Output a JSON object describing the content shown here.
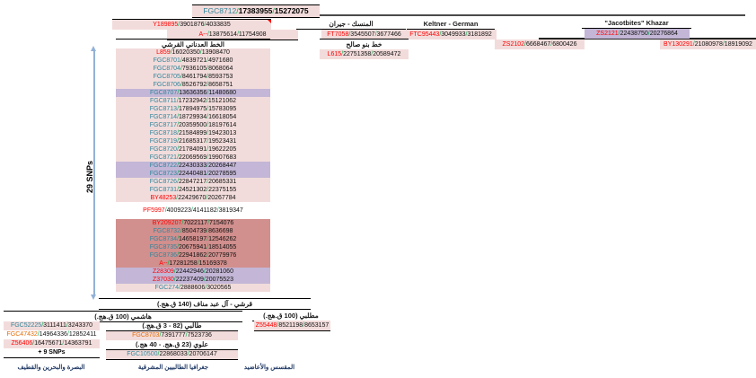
{
  "colors": {
    "pink_bg": "#f2dcdb",
    "purple_bg": "#c3b6d6",
    "red_block_bg": "#d18f8d",
    "snp_name_teal": "#31859c",
    "snp_name_red": "#ff0000",
    "snp_name_orange": "#e36c09",
    "slash_green": "#00b050",
    "arrow_blue": "#93b1d7",
    "caption_navy": "#1f3864"
  },
  "root": {
    "name": "FGC8712",
    "nc": "teal",
    "numbers": [
      "17383955",
      "15272075"
    ]
  },
  "top_left": {
    "y_row": {
      "name": "Y189895",
      "nc": "red",
      "numbers": [
        "3901876",
        "4033835"
      ]
    },
    "a_row": {
      "name": "A--",
      "nc": "red",
      "numbers": [
        "13875614",
        "11754908"
      ]
    }
  },
  "branch_mansak": {
    "header": "المنسك - جيران",
    "snp": {
      "name": "FT7058",
      "nc": "red",
      "numbers": [
        "3545507",
        "3677466"
      ]
    }
  },
  "branch_keltner": {
    "header": "Keltner - German",
    "snp": {
      "name": "FTC95443",
      "nc": "red",
      "numbers": [
        "3049933",
        "3181892"
      ]
    }
  },
  "branch_zs2102": {
    "name": "ZS2102",
    "nc": "red",
    "numbers": [
      "6668467",
      "6800426"
    ]
  },
  "branch_jacotbites": {
    "header": "\"Jacotbites\" Khazar",
    "snp": {
      "name": "ZS2121",
      "nc": "red",
      "numbers": [
        "22438750",
        "20276864"
      ]
    }
  },
  "branch_by130291": {
    "name": "BY130291",
    "nc": "red",
    "numbers": [
      "21080978",
      "18919092"
    ]
  },
  "salih": {
    "header": "خط بنو صالح",
    "snp": {
      "name": "L615",
      "nc": "red",
      "numbers": [
        "22751358",
        "20589472"
      ]
    }
  },
  "adnani": {
    "header": "الخط العدناني القرشي",
    "snp_count_label": "29 SNPs",
    "rows": [
      {
        "name": "L859",
        "nc": "red",
        "bg": "pink",
        "numbers": [
          "16020350",
          "13908470"
        ]
      },
      {
        "name": "FGC8701",
        "nc": "teal",
        "bg": "pink",
        "numbers": [
          "4839721",
          "4971680"
        ]
      },
      {
        "name": "FGC8704",
        "nc": "teal",
        "bg": "pink",
        "numbers": [
          "7936105",
          "8068064"
        ]
      },
      {
        "name": "FGC8705",
        "nc": "teal",
        "bg": "pink",
        "numbers": [
          "8461794",
          "8593753"
        ]
      },
      {
        "name": "FGC8706",
        "nc": "teal",
        "bg": "pink",
        "numbers": [
          "8526792",
          "8658751"
        ]
      },
      {
        "name": "FGC8707",
        "nc": "teal",
        "bg": "purple",
        "numbers": [
          "13636356",
          "11480680"
        ]
      },
      {
        "name": "FGC8711",
        "nc": "teal",
        "bg": "pink",
        "numbers": [
          "17232942",
          "15121062"
        ]
      },
      {
        "name": "FGC8713",
        "nc": "teal",
        "bg": "pink",
        "numbers": [
          "17894975",
          "15783095"
        ]
      },
      {
        "name": "FGC8714",
        "nc": "teal",
        "bg": "pink",
        "numbers": [
          "18729934",
          "16618054"
        ]
      },
      {
        "name": "FGC8717",
        "nc": "teal",
        "bg": "pink",
        "numbers": [
          "20359500",
          "18197614"
        ]
      },
      {
        "name": "FGC8718",
        "nc": "teal",
        "bg": "pink",
        "numbers": [
          "21584899",
          "19423013"
        ]
      },
      {
        "name": "FGC8719",
        "nc": "teal",
        "bg": "pink",
        "numbers": [
          "21685317",
          "19523431"
        ]
      },
      {
        "name": "FGC8720",
        "nc": "teal",
        "bg": "pink",
        "numbers": [
          "21784091",
          "19622205"
        ]
      },
      {
        "name": "FGC8721",
        "nc": "teal",
        "bg": "pink",
        "numbers": [
          "22069569",
          "19907683"
        ]
      },
      {
        "name": "FGC8722",
        "nc": "teal",
        "bg": "purple",
        "numbers": [
          "22430333",
          "20268447"
        ]
      },
      {
        "name": "FGC8723",
        "nc": "teal",
        "bg": "purple",
        "numbers": [
          "22440481",
          "20278595"
        ]
      },
      {
        "name": "FGC8726",
        "nc": "teal",
        "bg": "pink",
        "numbers": [
          "22847217",
          "20685331"
        ]
      },
      {
        "name": "FGC8731",
        "nc": "teal",
        "bg": "pink",
        "numbers": [
          "24521302",
          "22375155"
        ]
      },
      {
        "name": "BY48253",
        "nc": "red",
        "bg": "pink",
        "numbers": [
          "22429670",
          "20267784"
        ]
      },
      {
        "name": "PF5997",
        "nc": "red",
        "bg": "none",
        "numbers": [
          "4009223",
          "4141182",
          "3819347"
        ],
        "wide": true,
        "gap": true
      },
      {
        "name": "BY209207",
        "nc": "red",
        "bg": "redblock",
        "numbers": [
          "7022117",
          "7154076"
        ],
        "gap": true
      },
      {
        "name": "FGC8732",
        "nc": "teal",
        "bg": "redblock",
        "numbers": [
          "8504739",
          "8636698"
        ]
      },
      {
        "name": "FGC8734",
        "nc": "teal",
        "bg": "redblock",
        "numbers": [
          "14658197",
          "12546262"
        ]
      },
      {
        "name": "FGC8735",
        "nc": "teal",
        "bg": "redblock",
        "numbers": [
          "20675941",
          "18514055"
        ]
      },
      {
        "name": "FGC8736",
        "nc": "teal",
        "bg": "redblock",
        "numbers": [
          "22941862",
          "20779976"
        ]
      },
      {
        "name": "A--",
        "nc": "red",
        "bg": "redblock",
        "numbers": [
          "17281258",
          "15169378"
        ]
      },
      {
        "name": "Z28309",
        "nc": "red",
        "bg": "purple",
        "numbers": [
          "22442946",
          "20281060"
        ]
      },
      {
        "name": "Z37030",
        "nc": "red",
        "bg": "purple",
        "numbers": [
          "22237409",
          "20075523"
        ]
      },
      {
        "name": "FGC274",
        "nc": "teal",
        "bg": "pink",
        "numbers": [
          "2888606",
          "3020565"
        ]
      }
    ]
  },
  "bars": {
    "qurashi": "قرشي - آل عبد مناف (140 ق.هج.)",
    "hashimi": "هاشمي (100 ق.هج.)"
  },
  "muttalibi": {
    "header": "مطلبي (100 ق.هج.)",
    "snp": {
      "name": "Z55448",
      "nc": "red",
      "numbers": [
        "8521198",
        "8653157"
      ]
    }
  },
  "basra_column": {
    "rows": [
      {
        "name": "FGC52225",
        "nc": "teal",
        "bg": "pink",
        "numbers": [
          "3111411",
          "3243370"
        ]
      },
      {
        "name": "FGC47432",
        "nc": "orange",
        "bg": "none",
        "numbers": [
          "14964336",
          "12852411"
        ]
      },
      {
        "name": "Z56406",
        "nc": "red",
        "bg": "pink",
        "numbers": [
          "16475671",
          "14363791"
        ]
      }
    ],
    "extra_label": "+ 9 SNPs"
  },
  "talibi_column": {
    "talibi_header": "طالبي (82 - 3 ق.هج.)",
    "fgc8703": {
      "name": "FGC8703",
      "nc": "orange",
      "numbers": [
        "7391777",
        "7523736"
      ]
    },
    "alawi_header": "علوي (23 ق.هج. - 40 هج.)",
    "fgc10500": {
      "name": "FGC10500",
      "nc": "teal",
      "numbers": [
        "22868033",
        "20706147"
      ]
    }
  },
  "captions": {
    "left": "البصرة والبحرين والقطيف",
    "middle": "جغرافيا الطالبيين المشرقية",
    "right": "المقسس والأعاضيد"
  }
}
